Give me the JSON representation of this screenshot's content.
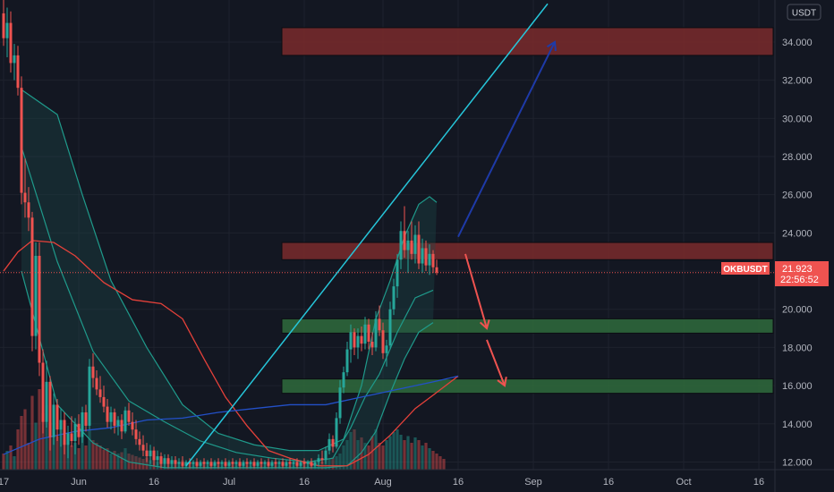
{
  "chart_data": {
    "type": "candlestick",
    "symbol": "OKBUSDT",
    "currency": "USDT",
    "last_price": "21.923",
    "countdown": "22:56:52",
    "colors": {
      "background": "#131722",
      "up": "#26a69a",
      "down": "#ef5350",
      "grid": "#1e222d",
      "axis_text": "#b2b5be",
      "price_line": "#ef5350",
      "bb_line": "#1f9a8b",
      "bb_fill": "#1c4a4a",
      "ema_red": "#e5413a",
      "ema_blue": "#2350c8",
      "trendline": "#26c6da",
      "arrow_up": "#1e3aa8",
      "arrow_down": "#ef5350",
      "zone_red": "#7a2a2c",
      "zone_green": "#2f6b3c"
    },
    "y_axis": {
      "range": [
        11.6,
        36.2
      ],
      "ticks": [
        "12.000",
        "14.000",
        "16.000",
        "18.000",
        "20.000",
        "22.000",
        "24.000",
        "26.000",
        "28.000",
        "30.000",
        "32.000",
        "34.000"
      ]
    },
    "x_axis": {
      "ticks": [
        "17",
        "Jun",
        "16",
        "Jul",
        "16",
        "Aug",
        "16",
        "Sep",
        "16",
        "Oct",
        "16"
      ],
      "tick_bars": [
        0,
        21,
        42,
        63,
        84,
        106,
        127,
        148,
        169,
        190,
        211
      ],
      "last_bar": 127,
      "total_bars": 225
    },
    "candles": [
      {
        "o": 35.5,
        "h": 36.4,
        "l": 33.8,
        "c": 34.2
      },
      {
        "o": 34.2,
        "h": 35.8,
        "l": 33.2,
        "c": 35.0
      },
      {
        "o": 35.0,
        "h": 35.6,
        "l": 32.4,
        "c": 32.9
      },
      {
        "o": 32.9,
        "h": 33.9,
        "l": 32.0,
        "c": 33.3
      },
      {
        "o": 33.3,
        "h": 33.8,
        "l": 31.2,
        "c": 31.6
      },
      {
        "o": 31.6,
        "h": 32.2,
        "l": 25.5,
        "c": 26.1
      },
      {
        "o": 26.1,
        "h": 27.9,
        "l": 24.8,
        "c": 25.6
      },
      {
        "o": 25.6,
        "h": 26.4,
        "l": 24.1,
        "c": 24.8
      },
      {
        "o": 24.8,
        "h": 25.1,
        "l": 17.8,
        "c": 18.6
      },
      {
        "o": 18.6,
        "h": 23.5,
        "l": 17.9,
        "c": 22.8
      },
      {
        "o": 22.8,
        "h": 23.5,
        "l": 16.5,
        "c": 17.2
      },
      {
        "o": 17.2,
        "h": 17.9,
        "l": 13.5,
        "c": 14.1
      },
      {
        "o": 14.1,
        "h": 17.3,
        "l": 13.8,
        "c": 16.2
      },
      {
        "o": 16.2,
        "h": 16.5,
        "l": 12.6,
        "c": 13.3
      },
      {
        "o": 13.3,
        "h": 15.6,
        "l": 12.9,
        "c": 15.0
      },
      {
        "o": 15.0,
        "h": 15.3,
        "l": 13.1,
        "c": 13.7
      },
      {
        "o": 13.7,
        "h": 14.8,
        "l": 12.8,
        "c": 14.2
      },
      {
        "o": 14.2,
        "h": 14.6,
        "l": 12.4,
        "c": 12.9
      },
      {
        "o": 12.9,
        "h": 13.9,
        "l": 12.2,
        "c": 13.5
      },
      {
        "o": 13.5,
        "h": 14.4,
        "l": 12.8,
        "c": 13.1
      },
      {
        "o": 13.1,
        "h": 14.3,
        "l": 12.4,
        "c": 14.0
      },
      {
        "o": 14.0,
        "h": 14.5,
        "l": 12.9,
        "c": 13.3
      },
      {
        "o": 13.3,
        "h": 14.9,
        "l": 13.0,
        "c": 14.6
      },
      {
        "o": 14.6,
        "h": 15.0,
        "l": 13.6,
        "c": 13.9
      },
      {
        "o": 13.9,
        "h": 17.4,
        "l": 13.7,
        "c": 17.0
      },
      {
        "o": 17.0,
        "h": 17.7,
        "l": 15.9,
        "c": 16.4
      },
      {
        "o": 16.4,
        "h": 16.8,
        "l": 15.5,
        "c": 15.8
      },
      {
        "o": 15.8,
        "h": 16.5,
        "l": 15.1,
        "c": 15.4
      },
      {
        "o": 15.4,
        "h": 16.0,
        "l": 14.6,
        "c": 14.9
      },
      {
        "o": 14.9,
        "h": 15.3,
        "l": 13.8,
        "c": 14.1
      },
      {
        "o": 14.1,
        "h": 14.9,
        "l": 13.7,
        "c": 14.6
      },
      {
        "o": 14.6,
        "h": 14.8,
        "l": 13.5,
        "c": 13.9
      },
      {
        "o": 13.9,
        "h": 14.4,
        "l": 13.4,
        "c": 14.2
      },
      {
        "o": 14.2,
        "h": 14.5,
        "l": 13.2,
        "c": 13.6
      },
      {
        "o": 13.6,
        "h": 14.9,
        "l": 13.5,
        "c": 14.7
      },
      {
        "o": 14.7,
        "h": 15.1,
        "l": 13.9,
        "c": 14.1
      },
      {
        "o": 14.1,
        "h": 14.6,
        "l": 13.4,
        "c": 13.7
      },
      {
        "o": 13.7,
        "h": 14.2,
        "l": 12.9,
        "c": 13.2
      },
      {
        "o": 13.2,
        "h": 13.6,
        "l": 12.6,
        "c": 12.9
      },
      {
        "o": 12.9,
        "h": 13.4,
        "l": 12.3,
        "c": 12.6
      },
      {
        "o": 12.6,
        "h": 13.0,
        "l": 12.0,
        "c": 12.3
      },
      {
        "o": 12.3,
        "h": 12.9,
        "l": 11.9,
        "c": 12.6
      },
      {
        "o": 12.6,
        "h": 12.8,
        "l": 11.8,
        "c": 12.1
      },
      {
        "o": 12.1,
        "h": 12.6,
        "l": 11.8,
        "c": 12.3
      },
      {
        "o": 12.3,
        "h": 12.5,
        "l": 11.7,
        "c": 11.9
      },
      {
        "o": 11.9,
        "h": 12.4,
        "l": 11.7,
        "c": 12.2
      },
      {
        "o": 12.2,
        "h": 12.4,
        "l": 11.7,
        "c": 11.9
      },
      {
        "o": 11.9,
        "h": 12.3,
        "l": 11.7,
        "c": 12.1
      },
      {
        "o": 12.1,
        "h": 12.3,
        "l": 11.7,
        "c": 11.9
      },
      {
        "o": 11.9,
        "h": 12.2,
        "l": 11.7,
        "c": 12.0
      },
      {
        "o": 12.0,
        "h": 12.3,
        "l": 11.7,
        "c": 11.8
      },
      {
        "o": 11.8,
        "h": 12.1,
        "l": 11.7,
        "c": 12.0
      },
      {
        "o": 12.0,
        "h": 12.2,
        "l": 11.7,
        "c": 11.9
      },
      {
        "o": 11.9,
        "h": 12.1,
        "l": 11.7,
        "c": 12.0
      },
      {
        "o": 12.0,
        "h": 12.2,
        "l": 11.7,
        "c": 11.8
      },
      {
        "o": 11.8,
        "h": 12.1,
        "l": 11.7,
        "c": 12.0
      },
      {
        "o": 12.0,
        "h": 12.2,
        "l": 11.7,
        "c": 11.9
      },
      {
        "o": 11.9,
        "h": 12.1,
        "l": 11.7,
        "c": 12.0
      },
      {
        "o": 12.0,
        "h": 12.2,
        "l": 11.7,
        "c": 11.8
      },
      {
        "o": 11.8,
        "h": 12.1,
        "l": 11.7,
        "c": 12.0
      },
      {
        "o": 12.0,
        "h": 12.2,
        "l": 11.7,
        "c": 11.9
      },
      {
        "o": 11.9,
        "h": 12.1,
        "l": 11.7,
        "c": 12.0
      },
      {
        "o": 12.0,
        "h": 12.2,
        "l": 11.7,
        "c": 11.8
      },
      {
        "o": 11.8,
        "h": 12.1,
        "l": 11.7,
        "c": 12.0
      },
      {
        "o": 12.0,
        "h": 12.2,
        "l": 11.7,
        "c": 11.9
      },
      {
        "o": 11.9,
        "h": 12.1,
        "l": 11.7,
        "c": 12.0
      },
      {
        "o": 12.0,
        "h": 12.2,
        "l": 11.7,
        "c": 11.8
      },
      {
        "o": 11.8,
        "h": 12.1,
        "l": 11.7,
        "c": 12.0
      },
      {
        "o": 12.0,
        "h": 12.2,
        "l": 11.7,
        "c": 11.9
      },
      {
        "o": 11.9,
        "h": 12.1,
        "l": 11.7,
        "c": 12.0
      },
      {
        "o": 12.0,
        "h": 12.2,
        "l": 11.7,
        "c": 11.8
      },
      {
        "o": 11.8,
        "h": 12.1,
        "l": 11.7,
        "c": 12.0
      },
      {
        "o": 12.0,
        "h": 12.2,
        "l": 11.7,
        "c": 11.9
      },
      {
        "o": 11.9,
        "h": 12.1,
        "l": 11.7,
        "c": 12.0
      },
      {
        "o": 12.0,
        "h": 12.2,
        "l": 11.7,
        "c": 11.8
      },
      {
        "o": 11.8,
        "h": 12.1,
        "l": 11.7,
        "c": 12.0
      },
      {
        "o": 12.0,
        "h": 12.2,
        "l": 11.7,
        "c": 11.9
      },
      {
        "o": 11.9,
        "h": 12.1,
        "l": 11.7,
        "c": 12.0
      },
      {
        "o": 12.0,
        "h": 12.2,
        "l": 11.7,
        "c": 11.8
      },
      {
        "o": 11.8,
        "h": 12.1,
        "l": 11.7,
        "c": 12.0
      },
      {
        "o": 12.0,
        "h": 12.2,
        "l": 11.7,
        "c": 11.9
      },
      {
        "o": 11.9,
        "h": 12.1,
        "l": 11.7,
        "c": 12.0
      },
      {
        "o": 12.0,
        "h": 12.2,
        "l": 11.7,
        "c": 11.8
      },
      {
        "o": 11.8,
        "h": 12.1,
        "l": 11.7,
        "c": 12.0
      },
      {
        "o": 12.0,
        "h": 12.2,
        "l": 11.7,
        "c": 11.9
      },
      {
        "o": 11.9,
        "h": 12.1,
        "l": 11.7,
        "c": 12.0
      },
      {
        "o": 12.0,
        "h": 12.2,
        "l": 11.7,
        "c": 11.8
      },
      {
        "o": 11.8,
        "h": 12.1,
        "l": 11.7,
        "c": 12.0
      },
      {
        "o": 12.0,
        "h": 12.4,
        "l": 11.8,
        "c": 12.2
      },
      {
        "o": 12.2,
        "h": 12.6,
        "l": 11.9,
        "c": 12.1
      },
      {
        "o": 12.1,
        "h": 12.8,
        "l": 11.9,
        "c": 12.6
      },
      {
        "o": 12.6,
        "h": 13.5,
        "l": 12.4,
        "c": 13.2
      },
      {
        "o": 13.2,
        "h": 13.4,
        "l": 12.5,
        "c": 12.8
      },
      {
        "o": 12.8,
        "h": 14.6,
        "l": 12.7,
        "c": 14.3
      },
      {
        "o": 14.3,
        "h": 16.3,
        "l": 14.0,
        "c": 15.9
      },
      {
        "o": 15.9,
        "h": 17.0,
        "l": 15.6,
        "c": 16.7
      },
      {
        "o": 16.7,
        "h": 18.3,
        "l": 16.5,
        "c": 17.9
      },
      {
        "o": 17.9,
        "h": 19.2,
        "l": 17.2,
        "c": 18.8
      },
      {
        "o": 18.8,
        "h": 19.0,
        "l": 17.6,
        "c": 18.0
      },
      {
        "o": 18.0,
        "h": 19.0,
        "l": 17.4,
        "c": 18.6
      },
      {
        "o": 18.6,
        "h": 19.1,
        "l": 17.8,
        "c": 18.2
      },
      {
        "o": 18.2,
        "h": 19.6,
        "l": 17.9,
        "c": 19.2
      },
      {
        "o": 19.2,
        "h": 19.5,
        "l": 17.9,
        "c": 18.3
      },
      {
        "o": 18.3,
        "h": 18.8,
        "l": 17.6,
        "c": 18.0
      },
      {
        "o": 18.0,
        "h": 19.9,
        "l": 17.8,
        "c": 19.5
      },
      {
        "o": 19.5,
        "h": 20.2,
        "l": 18.6,
        "c": 18.9
      },
      {
        "o": 18.9,
        "h": 19.3,
        "l": 17.4,
        "c": 17.7
      },
      {
        "o": 17.7,
        "h": 18.4,
        "l": 17.0,
        "c": 18.1
      },
      {
        "o": 18.1,
        "h": 20.4,
        "l": 17.9,
        "c": 20.0
      },
      {
        "o": 20.0,
        "h": 21.6,
        "l": 19.7,
        "c": 21.2
      },
      {
        "o": 21.2,
        "h": 22.9,
        "l": 20.6,
        "c": 22.6
      },
      {
        "o": 22.6,
        "h": 24.6,
        "l": 22.1,
        "c": 24.1
      },
      {
        "o": 24.1,
        "h": 25.4,
        "l": 22.7,
        "c": 23.1
      },
      {
        "o": 23.1,
        "h": 24.1,
        "l": 21.9,
        "c": 23.6
      },
      {
        "o": 23.6,
        "h": 24.6,
        "l": 22.6,
        "c": 22.9
      },
      {
        "o": 22.9,
        "h": 24.4,
        "l": 22.4,
        "c": 23.9
      },
      {
        "o": 23.9,
        "h": 24.6,
        "l": 22.1,
        "c": 22.4
      },
      {
        "o": 22.4,
        "h": 23.7,
        "l": 21.9,
        "c": 23.2
      },
      {
        "o": 23.2,
        "h": 23.6,
        "l": 22.0,
        "c": 22.3
      },
      {
        "o": 22.3,
        "h": 23.4,
        "l": 21.8,
        "c": 22.9
      },
      {
        "o": 22.9,
        "h": 23.1,
        "l": 21.9,
        "c": 22.2
      },
      {
        "o": 22.2,
        "h": 22.6,
        "l": 21.8,
        "c": 21.923
      }
    ],
    "bollinger": {
      "upper": [
        [
          5,
          31.5
        ],
        [
          15,
          30.2
        ],
        [
          22,
          26.0
        ],
        [
          30,
          21.5
        ],
        [
          40,
          18.0
        ],
        [
          50,
          15.0
        ],
        [
          60,
          13.5
        ],
        [
          70,
          12.9
        ],
        [
          80,
          12.6
        ],
        [
          88,
          12.6
        ],
        [
          95,
          13.2
        ],
        [
          100,
          16.0
        ],
        [
          104,
          19.5
        ],
        [
          108,
          21.5
        ],
        [
          112,
          23.8
        ],
        [
          116,
          25.5
        ],
        [
          119,
          25.9
        ],
        [
          121,
          25.6
        ]
      ],
      "middle": [
        [
          5,
          28.5
        ],
        [
          15,
          22.5
        ],
        [
          25,
          17.8
        ],
        [
          35,
          15.2
        ],
        [
          45,
          14.1
        ],
        [
          55,
          13.1
        ],
        [
          65,
          12.5
        ],
        [
          75,
          12.2
        ],
        [
          85,
          12.0
        ],
        [
          92,
          12.2
        ],
        [
          97,
          13.8
        ],
        [
          101,
          15.4
        ],
        [
          105,
          16.6
        ],
        [
          110,
          18.8
        ],
        [
          115,
          20.6
        ],
        [
          120,
          21.0
        ]
      ],
      "lower": [
        [
          5,
          22.0
        ],
        [
          15,
          15.0
        ],
        [
          25,
          13.0
        ],
        [
          35,
          12.0
        ],
        [
          45,
          11.7
        ],
        [
          80,
          11.7
        ],
        [
          90,
          11.7
        ],
        [
          96,
          11.8
        ],
        [
          100,
          12.5
        ],
        [
          104,
          13.6
        ],
        [
          108,
          15.6
        ],
        [
          112,
          17.4
        ],
        [
          116,
          18.8
        ],
        [
          120,
          19.3
        ]
      ]
    },
    "ema_red": [
      [
        0,
        22.0
      ],
      [
        4,
        23.0
      ],
      [
        8,
        23.6
      ],
      [
        14,
        23.5
      ],
      [
        20,
        22.8
      ],
      [
        28,
        21.4
      ],
      [
        36,
        20.5
      ],
      [
        44,
        20.3
      ],
      [
        50,
        19.5
      ],
      [
        56,
        17.4
      ],
      [
        62,
        15.4
      ],
      [
        68,
        13.9
      ],
      [
        74,
        12.6
      ],
      [
        80,
        12.2
      ],
      [
        88,
        11.8
      ],
      [
        96,
        11.8
      ],
      [
        102,
        12.4
      ],
      [
        108,
        13.4
      ],
      [
        115,
        14.8
      ],
      [
        120,
        15.5
      ],
      [
        127,
        16.5
      ]
    ],
    "ema_blue": [
      [
        0,
        12.4
      ],
      [
        10,
        13.2
      ],
      [
        20,
        13.6
      ],
      [
        30,
        13.8
      ],
      [
        40,
        14.2
      ],
      [
        50,
        14.3
      ],
      [
        60,
        14.6
      ],
      [
        70,
        14.8
      ],
      [
        80,
        15.0
      ],
      [
        90,
        15.0
      ],
      [
        100,
        15.4
      ],
      [
        110,
        15.8
      ],
      [
        120,
        16.2
      ],
      [
        127,
        16.5
      ]
    ],
    "zones": [
      {
        "color": "red",
        "bar_from": 77,
        "bar_to": 225,
        "price_from": 33.3,
        "price_to": 34.75
      },
      {
        "color": "red",
        "bar_from": 77,
        "bar_to": 225,
        "price_from": 22.6,
        "price_to": 23.5
      },
      {
        "color": "green",
        "bar_from": 77,
        "bar_to": 225,
        "price_from": 18.75,
        "price_to": 19.5
      },
      {
        "color": "green",
        "bar_from": 77,
        "bar_to": 225,
        "price_from": 15.6,
        "price_to": 16.35
      }
    ],
    "trendline": {
      "from": [
        51,
        11.8
      ],
      "to": [
        152,
        36.0
      ]
    },
    "arrows": [
      {
        "color": "blue",
        "from": [
          127,
          23.8
        ],
        "to": [
          154,
          34.0
        ]
      },
      {
        "color": "red",
        "from": [
          129,
          22.9
        ],
        "to": [
          135,
          19.0
        ]
      },
      {
        "color": "red",
        "from": [
          135,
          18.4
        ],
        "to": [
          140,
          16.0
        ]
      }
    ],
    "volume": [
      12,
      14,
      18,
      10,
      30,
      40,
      45,
      20,
      55,
      35,
      60,
      42,
      48,
      35,
      30,
      25,
      30,
      22,
      27,
      18,
      20,
      16,
      24,
      18,
      30,
      22,
      20,
      18,
      15,
      16,
      12,
      14,
      12,
      13,
      16,
      12,
      11,
      10,
      9,
      8,
      9,
      7,
      8,
      6,
      7,
      6,
      7,
      6,
      7,
      6,
      7,
      5,
      6,
      5,
      6,
      5,
      6,
      5,
      6,
      5,
      6,
      5,
      6,
      5,
      6,
      5,
      6,
      5,
      6,
      5,
      6,
      5,
      6,
      5,
      6,
      5,
      6,
      5,
      6,
      5,
      6,
      5,
      6,
      5,
      6,
      5,
      6,
      5,
      6,
      6,
      7,
      8,
      9,
      10,
      12,
      18,
      22,
      28,
      30,
      22,
      24,
      20,
      18,
      25,
      30,
      20,
      18,
      22,
      25,
      28,
      30,
      26,
      22,
      25,
      20,
      24,
      22,
      18,
      20,
      16,
      14,
      12,
      10,
      8
    ]
  }
}
